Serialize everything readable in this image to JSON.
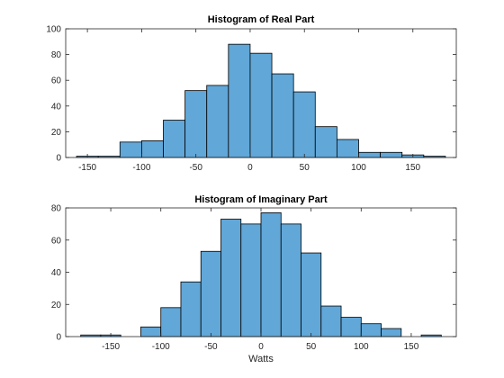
{
  "chart_data": [
    {
      "type": "bar",
      "title": "Histogram of Real Part",
      "xlabel": "",
      "ylabel": "",
      "bin_width": 20,
      "bin_edges": [
        -160,
        -140,
        -120,
        -100,
        -80,
        -60,
        -40,
        -20,
        0,
        20,
        40,
        60,
        80,
        100,
        120,
        140,
        160,
        180
      ],
      "values": [
        1,
        1,
        12,
        13,
        29,
        52,
        56,
        88,
        81,
        65,
        51,
        24,
        14,
        4,
        4,
        2,
        1
      ],
      "xlim": [
        -170,
        190
      ],
      "ylim": [
        0,
        100
      ],
      "xticks": [
        -150,
        -100,
        -50,
        0,
        50,
        100,
        150
      ],
      "xtick_labels": [
        "-150",
        "-100",
        "-50",
        "0",
        "50",
        "100",
        "150"
      ],
      "yticks": [
        0,
        20,
        40,
        60,
        80,
        100
      ],
      "ytick_labels": [
        "0",
        "20",
        "40",
        "60",
        "80",
        "100"
      ],
      "color": "#61a7d8"
    },
    {
      "type": "bar",
      "title": "Histogram of Imaginary Part",
      "xlabel": "Watts",
      "ylabel": "",
      "bin_width": 20,
      "bin_edges": [
        -180,
        -160,
        -140,
        -120,
        -100,
        -80,
        -60,
        -40,
        -20,
        0,
        20,
        40,
        60,
        80,
        100,
        120,
        140,
        160,
        180
      ],
      "values": [
        1,
        1,
        0,
        6,
        18,
        34,
        53,
        73,
        70,
        77,
        70,
        52,
        19,
        12,
        8,
        5,
        0,
        1
      ],
      "xlim": [
        -195,
        195
      ],
      "ylim": [
        0,
        80
      ],
      "xticks": [
        -150,
        -100,
        -50,
        0,
        50,
        100,
        150
      ],
      "xtick_labels": [
        "-150",
        "-100",
        "-50",
        "0",
        "50",
        "100",
        "150"
      ],
      "yticks": [
        0,
        20,
        40,
        60,
        80
      ],
      "ytick_labels": [
        "0",
        "20",
        "40",
        "60",
        "80"
      ],
      "color": "#61a7d8"
    }
  ]
}
